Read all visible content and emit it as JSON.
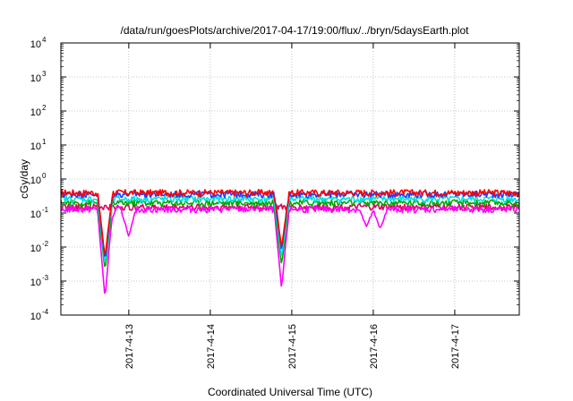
{
  "chart_data": {
    "type": "line",
    "title": "/data/run/goesPlots/archive/2017-04-17/19:00/flux/../bryn/5daysEarth.plot",
    "xlabel": "Coordinated Universal Time (UTC)",
    "ylabel": "cGy/day",
    "yscale": "log",
    "ylim": [
      0.0001,
      10000
    ],
    "xlim": [
      "2017-04-12 04:00",
      "2017-04-17 19:00"
    ],
    "y_ticks": [
      {
        "base": "10",
        "exp": "-4"
      },
      {
        "base": "10",
        "exp": "-3"
      },
      {
        "base": "10",
        "exp": "-2"
      },
      {
        "base": "10",
        "exp": "-1"
      },
      {
        "base": "10",
        "exp": "0"
      },
      {
        "base": "10",
        "exp": "1"
      },
      {
        "base": "10",
        "exp": "2"
      },
      {
        "base": "10",
        "exp": "3"
      },
      {
        "base": "10",
        "exp": "4"
      }
    ],
    "x_ticks": [
      "2017-4-13",
      "2017-4-14",
      "2017-4-15",
      "2017-4-16",
      "2017-4-17"
    ],
    "grid": true,
    "series": [
      {
        "color": "#ff0000",
        "baseline": 0.4,
        "dips": [
          {
            "x": "2017-04-12 17:00",
            "y": 0.005
          },
          {
            "x": "2017-04-14 21:00",
            "y": 0.01
          }
        ]
      },
      {
        "color": "#1e40ff",
        "baseline": 0.36,
        "dips": [
          {
            "x": "2017-04-12 17:00",
            "y": 0.004
          },
          {
            "x": "2017-04-14 21:00",
            "y": 0.008
          }
        ]
      },
      {
        "color": "#00e0e0",
        "baseline": 0.26,
        "dips": [
          {
            "x": "2017-04-12 17:00",
            "y": 0.003
          },
          {
            "x": "2017-04-14 21:00",
            "y": 0.005
          }
        ]
      },
      {
        "color": "#00aa00",
        "baseline": 0.2,
        "dips": [
          {
            "x": "2017-04-12 17:00",
            "y": 0.002
          },
          {
            "x": "2017-04-14 21:00",
            "y": 0.003
          }
        ]
      },
      {
        "color": "#ff00ff",
        "baseline": 0.13,
        "dips": [
          {
            "x": "2017-04-12 17:00",
            "y": 0.0003
          },
          {
            "x": "2017-04-14 21:00",
            "y": 0.0006
          },
          {
            "x": "2017-04-12 18:00",
            "y": 0.04
          },
          {
            "x": "2017-04-13 00:00",
            "y": 0.02
          },
          {
            "x": "2017-04-15 22:00",
            "y": 0.04
          },
          {
            "x": "2017-04-16 02:00",
            "y": 0.035
          }
        ]
      },
      {
        "color": "#e00060",
        "baseline": 0.15,
        "dips": []
      }
    ]
  }
}
